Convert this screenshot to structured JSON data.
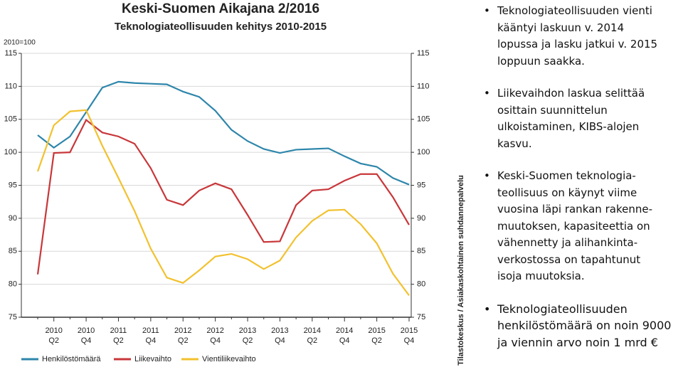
{
  "chart_data": {
    "type": "line",
    "title": "Keski-Suomen Aikajana 2/2016",
    "subtitle": "Teknologiateollisuuden kehitys 2010-2015",
    "y_label": "2010=100",
    "categories": [
      null,
      "2010 Q2",
      null,
      "2010 Q4",
      null,
      "2011 Q2",
      null,
      "2011 Q4",
      null,
      "2012 Q2",
      null,
      "2012 Q4",
      null,
      "2013 Q2",
      null,
      "2013 Q4",
      null,
      "2014 Q2",
      null,
      "2014 Q4",
      null,
      "2015 Q2",
      null,
      "2015 Q4"
    ],
    "series": [
      {
        "name": "Henkilöstömäärä",
        "color": "#2e86ab",
        "values": [
          102.6,
          100.7,
          102.4,
          106.1,
          109.8,
          110.7,
          110.5,
          110.4,
          110.3,
          109.2,
          108.4,
          106.3,
          103.4,
          101.7,
          100.5,
          99.9,
          100.4,
          100.5,
          100.6,
          99.4,
          98.3,
          97.8,
          96.1,
          95.1
        ]
      },
      {
        "name": "Liikevaihto",
        "color": "#c8373a",
        "values": [
          81.5,
          99.9,
          100.0,
          104.9,
          103.0,
          102.4,
          101.3,
          97.6,
          92.8,
          92.0,
          94.2,
          95.3,
          94.4,
          90.5,
          86.4,
          86.5,
          92.0,
          94.2,
          94.4,
          95.7,
          96.7,
          96.7,
          93.2,
          89.0
        ]
      },
      {
        "name": "Vientiliikevaihto",
        "color": "#f2c12e",
        "values": [
          97.1,
          104.1,
          106.2,
          106.4,
          101.0,
          96.1,
          91.1,
          85.4,
          81.0,
          80.2,
          82.1,
          84.2,
          84.6,
          83.8,
          82.3,
          83.6,
          87.1,
          89.6,
          91.2,
          91.3,
          89.1,
          86.2,
          81.6,
          78.3
        ]
      }
    ],
    "ylim": [
      75,
      115
    ],
    "yticks": [
      75,
      80,
      85,
      90,
      95,
      100,
      105,
      110,
      115
    ],
    "grid": true,
    "legend": "bottom"
  },
  "source": "Tilastokeskus / Asiakaskohtainen suhdannepalvelu",
  "bullets": [
    "Teknologiateollisuuden vienti\nkääntyi laskuun v. 2014\nlopussa ja lasku jatkui v. 2015\nloppuun saakka.",
    "Liikevaihdon laskua selittää\nosittain suunnittelun\nulkoistaminen, KIBS-alojen\nkasvu.",
    "Keski-Suomen teknologia-\nteollisuus on käynyt viime\nvuosina läpi rankan rakenne-\nmuutoksen, kapasiteettia on\nvähennetty ja alihankinta-\nverkostossa on tapahtunut\nisoja muutoksia.",
    "Teknologiateollisuuden\nhenkilöstömäärä on noin 9000\nja viennin arvo noin 1 mrd €"
  ]
}
